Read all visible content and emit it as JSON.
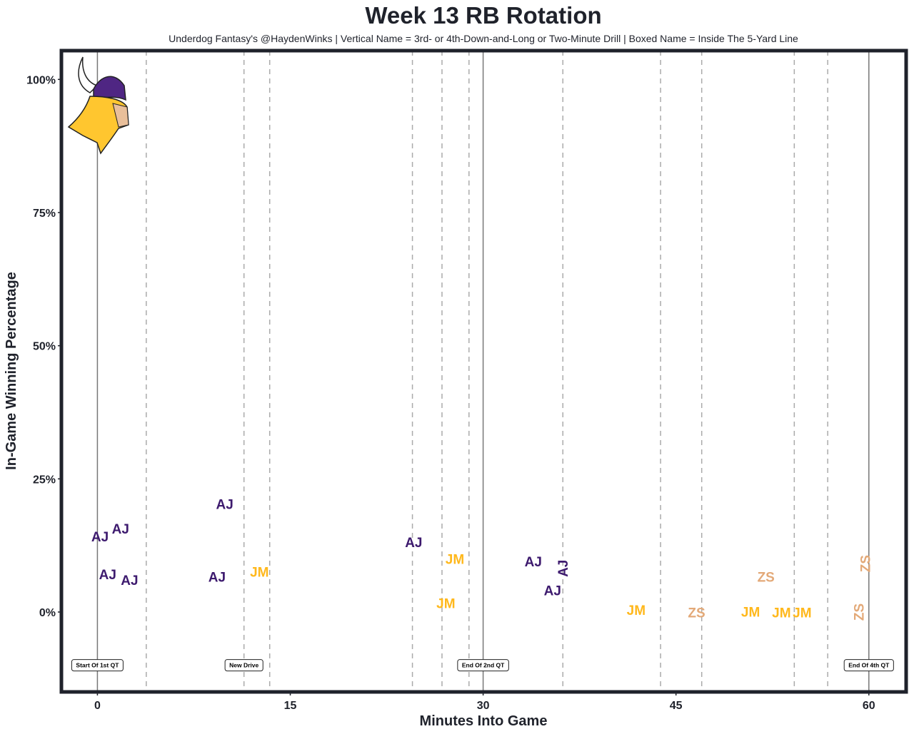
{
  "chart_data": {
    "type": "scatter",
    "title": "Week 13 RB Rotation",
    "subtitle": "Underdog Fantasy's @HaydenWinks | Vertical Name = 3rd- or 4th-Down-and-Long or Two-Minute Drill | Boxed Name = Inside The 5-Yard Line",
    "xlabel": "Minutes Into Game",
    "ylabel": "In-Game Winning Percentage",
    "xlim": [
      -2.8,
      62.9
    ],
    "ylim": [
      -15,
      105.4
    ],
    "x_ticks": [
      0,
      15,
      30,
      45,
      60
    ],
    "x_tick_labels": [
      "0",
      "15",
      "30",
      "45",
      "60"
    ],
    "y_ticks": [
      0,
      25,
      50,
      75,
      100
    ],
    "y_tick_labels": [
      "0%",
      "25%",
      "50%",
      "75%",
      "100%"
    ],
    "grid": false,
    "quarter_lines": [
      0,
      30,
      60
    ],
    "drive_lines": [
      3.8,
      11.4,
      13.4,
      24.5,
      26.8,
      28.9,
      36.2,
      43.8,
      47.0,
      54.2,
      56.8
    ],
    "colors": {
      "AJ": "#3d1a6e",
      "JM": "#ffb81c",
      "ZS": "#e3a978",
      "frame": "#1f222b"
    },
    "points": [
      {
        "label": "AJ",
        "x": 0.2,
        "y": 14.2,
        "vertical": false
      },
      {
        "label": "AJ",
        "x": 1.8,
        "y": 15.7,
        "vertical": false
      },
      {
        "label": "AJ",
        "x": 0.8,
        "y": 7.1,
        "vertical": false
      },
      {
        "label": "AJ",
        "x": 2.5,
        "y": 6.0,
        "vertical": false
      },
      {
        "label": "AJ",
        "x": 9.9,
        "y": 20.3,
        "vertical": false
      },
      {
        "label": "AJ",
        "x": 9.3,
        "y": 6.6,
        "vertical": false
      },
      {
        "label": "JM",
        "x": 12.6,
        "y": 7.6,
        "vertical": false
      },
      {
        "label": "AJ",
        "x": 24.6,
        "y": 13.1,
        "vertical": false
      },
      {
        "label": "JM",
        "x": 27.8,
        "y": 10.0,
        "vertical": false
      },
      {
        "label": "JM",
        "x": 27.1,
        "y": 1.7,
        "vertical": false
      },
      {
        "label": "AJ",
        "x": 33.9,
        "y": 9.5,
        "vertical": false
      },
      {
        "label": "AJ",
        "x": 36.2,
        "y": 8.2,
        "vertical": true
      },
      {
        "label": "AJ",
        "x": 35.4,
        "y": 4.1,
        "vertical": false
      },
      {
        "label": "JM",
        "x": 41.9,
        "y": 0.4,
        "vertical": false
      },
      {
        "label": "ZS",
        "x": 46.6,
        "y": -0.1,
        "vertical": false
      },
      {
        "label": "JM",
        "x": 50.8,
        "y": 0.1,
        "vertical": false
      },
      {
        "label": "ZS",
        "x": 52.0,
        "y": 6.6,
        "vertical": false
      },
      {
        "label": "JM",
        "x": 53.2,
        "y": -0.1,
        "vertical": false
      },
      {
        "label": "JM",
        "x": 53.7,
        "y": -0.1,
        "vertical": false
      },
      {
        "label": "ZS",
        "x": 59.7,
        "y": 9.1,
        "vertical": true
      },
      {
        "label": "ZS",
        "x": 59.2,
        "y": 0.0,
        "vertical": true
      }
    ],
    "annotations": [
      {
        "text": "Start Of 1st QT",
        "x": 0,
        "y": -10
      },
      {
        "text": "New Drive",
        "x": 11.4,
        "y": -10
      },
      {
        "text": "End Of 2nd QT",
        "x": 30,
        "y": -10
      },
      {
        "text": "End Of 4th QT",
        "x": 60,
        "y": -10
      }
    ]
  }
}
